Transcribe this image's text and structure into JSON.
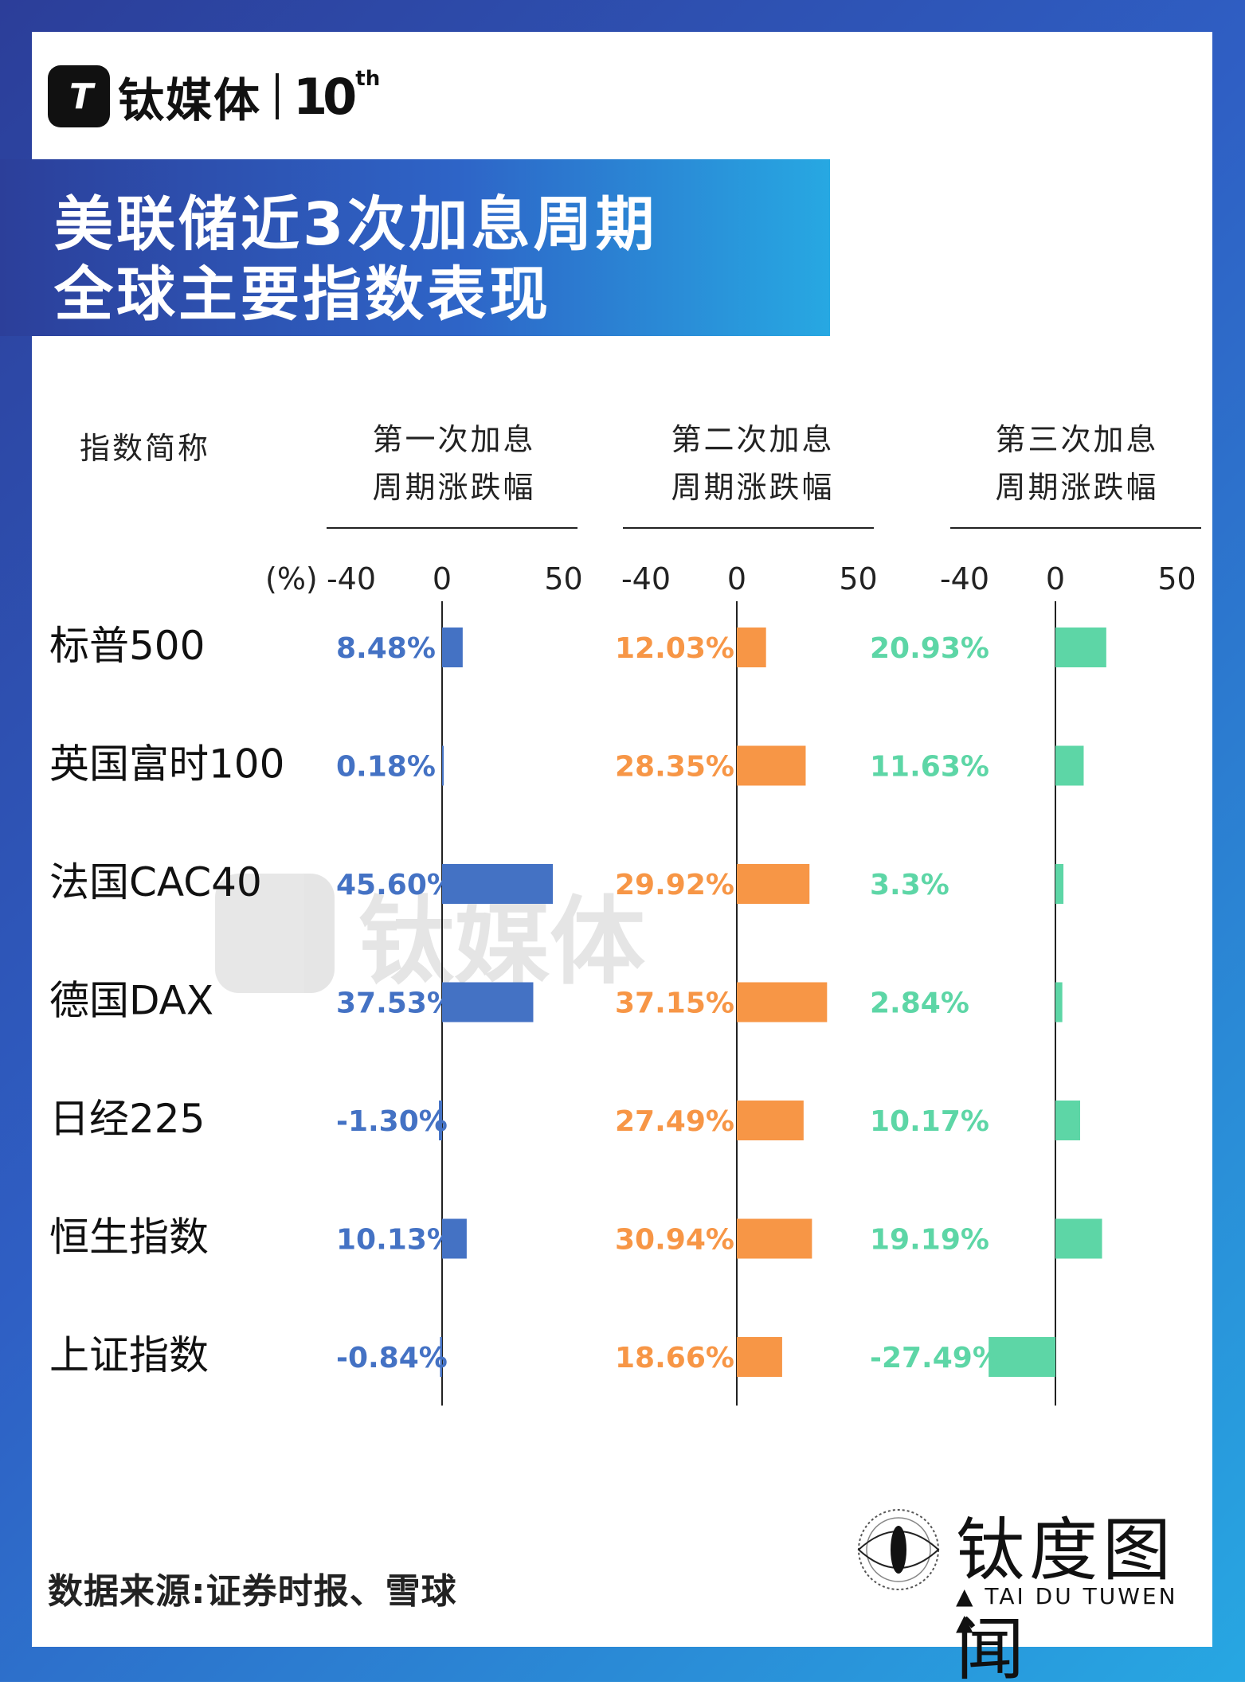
{
  "header": {
    "logo_mark": "T",
    "logo_name": "钛媒体",
    "logo_ten": "10",
    "logo_th": "th",
    "title_line1": "美联储近3次加息周期",
    "title_line2": "全球主要指数表现"
  },
  "table_headers": {
    "name": "指数简称",
    "col1": [
      "第一次加息",
      "周期涨跌幅"
    ],
    "col2": [
      "第二次加息",
      "周期涨跌幅"
    ],
    "col3": [
      "第三次加息",
      "周期涨跌幅"
    ]
  },
  "chart_data": {
    "type": "bar",
    "orientation": "horizontal",
    "unit_label": "(%)",
    "xlim": [
      -40,
      50
    ],
    "ticks": [
      "-40",
      "0",
      "50"
    ],
    "categories": [
      "标普500",
      "英国富时100",
      "法国CAC40",
      "德国DAX",
      "日经225",
      "恒生指数",
      "上证指数"
    ],
    "series": [
      {
        "name": "第一次加息周期涨跌幅",
        "color": "#4472c4",
        "values": [
          8.48,
          0.18,
          45.6,
          37.53,
          -1.3,
          10.13,
          -0.84
        ],
        "labels": [
          "8.48%",
          "0.18%",
          "45.60%",
          "37.53%",
          "-1.30%",
          "10.13%",
          "-0.84%"
        ]
      },
      {
        "name": "第二次加息周期涨跌幅",
        "color": "#f79646",
        "values": [
          12.03,
          28.35,
          29.92,
          37.15,
          27.49,
          30.94,
          18.66
        ],
        "labels": [
          "12.03%",
          "28.35%",
          "29.92%",
          "37.15%",
          "27.49%",
          "30.94%",
          "18.66%"
        ]
      },
      {
        "name": "第三次加息周期涨跌幅",
        "color": "#5dd6a6",
        "values": [
          20.93,
          11.63,
          3.3,
          2.84,
          10.17,
          19.19,
          -27.49
        ],
        "labels": [
          "20.93%",
          "11.63%",
          "3.3%",
          "2.84%",
          "10.17%",
          "19.19%",
          "-27.49%"
        ]
      }
    ]
  },
  "watermark": {
    "text": "钛媒体"
  },
  "brand": {
    "name": "钛度图闻",
    "sub": "▲ TAI DU TUWEN ▲"
  },
  "source": "数据来源:证券时报、雪球"
}
